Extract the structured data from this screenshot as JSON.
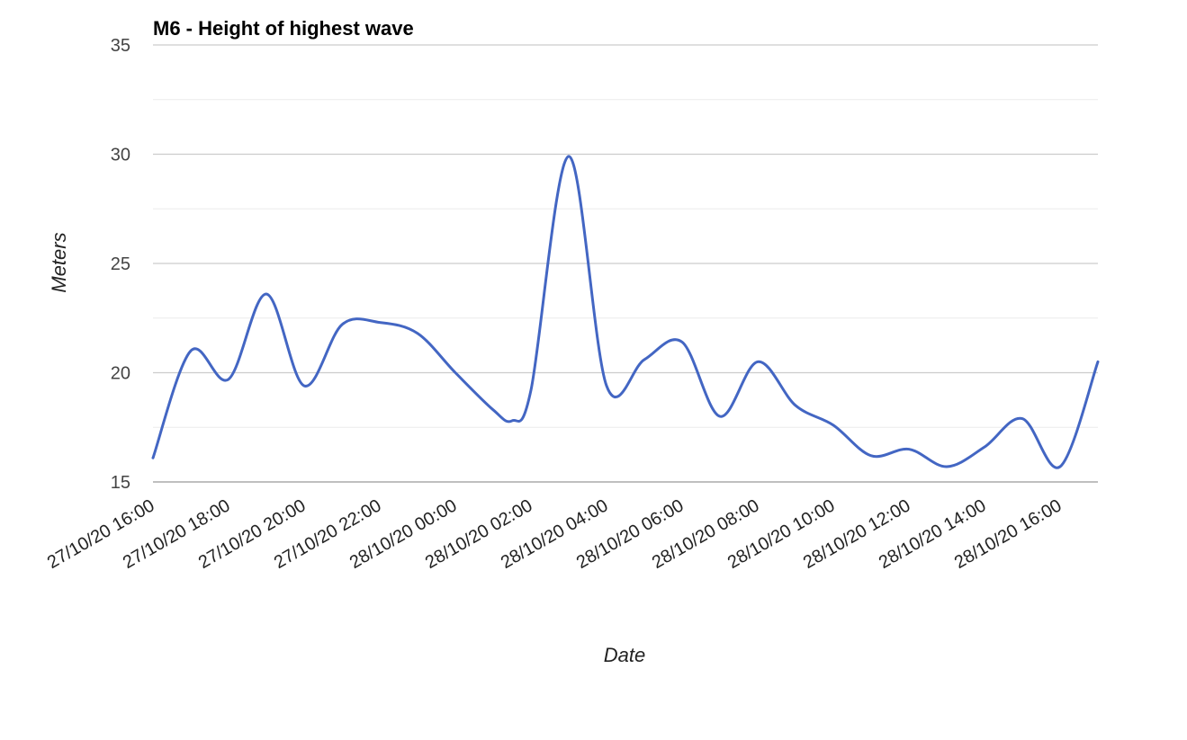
{
  "chart_data": {
    "type": "line",
    "title": "M6 - Height of highest wave",
    "xlabel": "Date",
    "ylabel": "Meters",
    "ylim": [
      15,
      35
    ],
    "y_ticks": [
      15,
      20,
      25,
      30,
      35
    ],
    "minor_gridlines": true,
    "legend": "none",
    "x_tick_labels": [
      "27/10/20 16:00",
      "27/10/20 18:00",
      "27/10/20 20:00",
      "27/10/20 22:00",
      "28/10/20 00:00",
      "28/10/20 02:00",
      "28/10/20 04:00",
      "28/10/20 06:00",
      "28/10/20 08:00",
      "28/10/20 10:00",
      "28/10/20 12:00",
      "28/10/20 14:00",
      "28/10/20 16:00"
    ],
    "xlim": [
      "27/10/20 16:00",
      "28/10/20 17:00"
    ],
    "series": [
      {
        "color": "#4366c3",
        "points": [
          [
            "27/10/20 16:00",
            16.1
          ],
          [
            "27/10/20 17:00",
            21.0
          ],
          [
            "27/10/20 18:00",
            19.7
          ],
          [
            "27/10/20 19:00",
            23.6
          ],
          [
            "27/10/20 20:00",
            19.4
          ],
          [
            "27/10/20 21:00",
            22.2
          ],
          [
            "27/10/20 22:00",
            22.3
          ],
          [
            "27/10/20 23:00",
            21.8
          ],
          [
            "28/10/20 00:00",
            20.0
          ],
          [
            "28/10/20 01:00",
            18.3
          ],
          [
            "28/10/20 01:30",
            17.8
          ],
          [
            "28/10/20 02:00",
            19.2
          ],
          [
            "28/10/20 03:00",
            29.9
          ],
          [
            "28/10/20 04:00",
            19.4
          ],
          [
            "28/10/20 05:00",
            20.6
          ],
          [
            "28/10/20 06:00",
            21.4
          ],
          [
            "28/10/20 07:00",
            18.0
          ],
          [
            "28/10/20 08:00",
            20.5
          ],
          [
            "28/10/20 09:00",
            18.5
          ],
          [
            "28/10/20 10:00",
            17.6
          ],
          [
            "28/10/20 11:00",
            16.2
          ],
          [
            "28/10/20 12:00",
            16.5
          ],
          [
            "28/10/20 13:00",
            15.7
          ],
          [
            "28/10/20 14:00",
            16.6
          ],
          [
            "28/10/20 15:00",
            17.9
          ],
          [
            "28/10/20 16:00",
            15.7
          ],
          [
            "28/10/20 17:00",
            20.5
          ]
        ]
      }
    ]
  }
}
